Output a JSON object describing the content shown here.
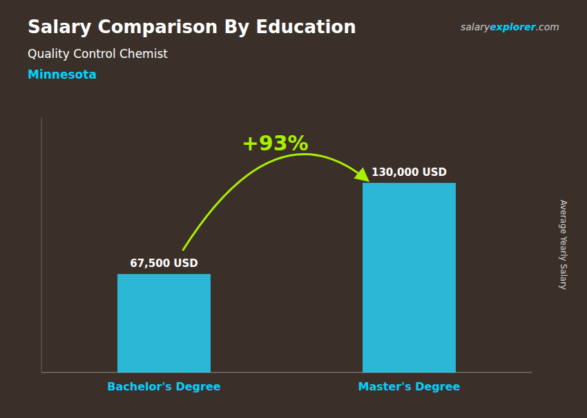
{
  "chart_data": {
    "type": "bar",
    "title": "Salary Comparison By Education",
    "subtitle": "Quality Control Chemist",
    "annotations": [
      "Minnesota",
      "+93%",
      "salary",
      "explorer",
      ".com"
    ],
    "ylabel": "Average Yearly Salary",
    "categories": [
      "Bachelor's Degree",
      "Master's Degree"
    ],
    "values": [
      67500,
      130000
    ],
    "value_labels": [
      "67,500 USD",
      "130,000 USD"
    ],
    "color": "#29d0f5",
    "ylim": [
      0,
      175000
    ],
    "data_labels": true,
    "tick_labels": "x",
    "grid": false
  }
}
